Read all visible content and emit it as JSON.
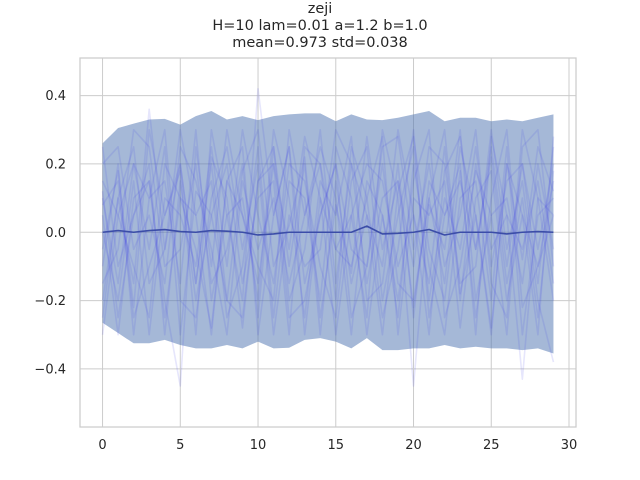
{
  "chart_data": {
    "type": "line",
    "title_lines": [
      "zeji",
      "H=10 lam=0.01 a=1.2 b=1.0",
      "mean=0.973 std=0.038"
    ],
    "xlabel": "",
    "ylabel": "",
    "xlim": [
      -1.45,
      30.45
    ],
    "ylim": [
      -0.57,
      0.51
    ],
    "xticks": [
      0,
      5,
      10,
      15,
      20,
      25,
      30
    ],
    "yticks": [
      -0.4,
      -0.2,
      0.0,
      0.2,
      0.4
    ],
    "xtick_labels": [
      "0",
      "5",
      "10",
      "15",
      "20",
      "25",
      "30"
    ],
    "ytick_labels": [
      "−0.4",
      "−0.2",
      "0.0",
      "0.2",
      "0.4"
    ],
    "grid": true,
    "colors": {
      "band": "#4c72b0",
      "mean": "#3b4da8",
      "trace": "#3a3ae6",
      "grid": "#cccccc",
      "spine": "#cccccc"
    },
    "x": [
      0,
      1,
      2,
      3,
      4,
      5,
      6,
      7,
      8,
      9,
      10,
      11,
      12,
      13,
      14,
      15,
      16,
      17,
      18,
      19,
      20,
      21,
      22,
      23,
      24,
      25,
      26,
      27,
      28,
      29
    ],
    "series": [
      {
        "role": "mean",
        "values": [
          0.0,
          0.005,
          0.0,
          0.005,
          0.008,
          0.002,
          0.0,
          0.005,
          0.003,
          0.0,
          -0.008,
          -0.005,
          0.0,
          0.0,
          0.0,
          0.0,
          0.0,
          0.018,
          -0.005,
          -0.003,
          0.0,
          0.008,
          -0.008,
          0.0,
          0.0,
          0.0,
          -0.005,
          0.0,
          0.002,
          0.0
        ]
      },
      {
        "role": "band_upper",
        "values": [
          0.26,
          0.305,
          0.318,
          0.33,
          0.332,
          0.315,
          0.34,
          0.355,
          0.33,
          0.34,
          0.328,
          0.34,
          0.345,
          0.348,
          0.348,
          0.325,
          0.345,
          0.33,
          0.328,
          0.335,
          0.345,
          0.355,
          0.325,
          0.335,
          0.335,
          0.325,
          0.33,
          0.325,
          0.335,
          0.345
        ]
      },
      {
        "role": "band_lower",
        "values": [
          -0.265,
          -0.295,
          -0.325,
          -0.325,
          -0.315,
          -0.33,
          -0.34,
          -0.34,
          -0.33,
          -0.34,
          -0.32,
          -0.34,
          -0.338,
          -0.315,
          -0.31,
          -0.32,
          -0.34,
          -0.31,
          -0.345,
          -0.345,
          -0.34,
          -0.34,
          -0.33,
          -0.34,
          -0.335,
          -0.34,
          -0.34,
          -0.345,
          -0.34,
          -0.355
        ]
      },
      {
        "role": "trace",
        "values": [
          0.1,
          -0.15,
          0.2,
          -0.05,
          0.25,
          -0.3,
          0.12,
          0.05,
          -0.2,
          0.18,
          0.3,
          -0.1,
          0.02,
          0.22,
          -0.25,
          0.08,
          -0.12,
          0.28,
          -0.05,
          0.15,
          -0.22,
          0.1,
          0.3,
          -0.18,
          0.05,
          -0.28,
          0.2,
          -0.08,
          0.25,
          0.12
        ]
      },
      {
        "role": "trace",
        "values": [
          -0.05,
          0.18,
          -0.22,
          0.3,
          0.05,
          0.2,
          -0.15,
          0.22,
          0.1,
          -0.28,
          0.15,
          0.25,
          -0.2,
          -0.05,
          0.3,
          -0.15,
          0.2,
          0.05,
          -0.3,
          0.12,
          0.28,
          -0.05,
          -0.2,
          0.18,
          -0.25,
          0.1,
          0.3,
          -0.22,
          -0.1,
          0.05
        ]
      },
      {
        "role": "trace",
        "values": [
          0.05,
          -0.3,
          0.1,
          0.15,
          -0.2,
          -0.45,
          0.25,
          -0.1,
          0.3,
          0.05,
          -0.15,
          0.2,
          -0.05,
          0.28,
          0.1,
          -0.3,
          0.05,
          0.2,
          0.15,
          -0.1,
          0.05,
          -0.3,
          0.18,
          0.28,
          -0.05,
          0.22,
          -0.15,
          0.1,
          -0.25,
          0.18
        ]
      },
      {
        "role": "trace",
        "values": [
          0.15,
          0.05,
          -0.1,
          -0.25,
          0.2,
          0.1,
          -0.05,
          -0.28,
          0.15,
          0.25,
          -0.3,
          0.05,
          0.25,
          -0.15,
          0.05,
          0.2,
          -0.25,
          -0.1,
          0.25,
          0.28,
          -0.05,
          0.2,
          -0.1,
          0.05,
          0.3,
          -0.15,
          -0.25,
          0.3,
          0.1,
          -0.2
        ]
      },
      {
        "role": "trace",
        "values": [
          -0.2,
          0.1,
          0.25,
          -0.15,
          -0.05,
          0.3,
          0.05,
          0.15,
          -0.25,
          -0.1,
          0.25,
          -0.25,
          0.15,
          0.1,
          -0.2,
          0.25,
          0.1,
          -0.3,
          0.05,
          -0.2,
          0.15,
          0.3,
          -0.25,
          -0.1,
          0.18,
          0.05,
          0.1,
          -0.15,
          0.2,
          -0.05
        ]
      },
      {
        "role": "trace",
        "values": [
          0.25,
          -0.1,
          0.05,
          0.2,
          -0.3,
          0.15,
          -0.2,
          0.05,
          0.2,
          -0.15,
          0.1,
          0.15,
          -0.3,
          0.25,
          0.2,
          -0.05,
          -0.1,
          0.1,
          0.28,
          -0.3,
          0.1,
          0.05,
          0.15,
          -0.28,
          0.1,
          0.18,
          -0.2,
          0.05,
          -0.3,
          0.28
        ]
      },
      {
        "role": "trace",
        "values": [
          -0.1,
          0.2,
          -0.3,
          0.1,
          0.15,
          -0.15,
          0.3,
          -0.2,
          0.05,
          0.1,
          -0.2,
          0.3,
          0.1,
          -0.25,
          0.15,
          0.05,
          0.28,
          -0.2,
          -0.15,
          0.2,
          -0.25,
          0.15,
          0.05,
          0.2,
          -0.3,
          0.28,
          0.05,
          -0.05,
          0.15,
          -0.15
        ]
      },
      {
        "role": "trace",
        "values": [
          0.0,
          -0.2,
          0.15,
          -0.3,
          0.1,
          0.05,
          -0.1,
          0.25,
          -0.1,
          0.3,
          0.05,
          -0.15,
          0.2,
          0.15,
          -0.1,
          -0.25,
          0.15,
          0.25,
          -0.2,
          0.05,
          0.25,
          -0.2,
          0.1,
          -0.05,
          0.25,
          -0.1,
          0.15,
          0.2,
          -0.15,
          0.25
        ]
      },
      {
        "role": "trace",
        "values": [
          0.2,
          0.25,
          -0.05,
          0.05,
          -0.15,
          0.25,
          0.15,
          -0.05,
          -0.3,
          0.15,
          -0.05,
          0.1,
          -0.15,
          0.05,
          0.25,
          0.1,
          -0.3,
          0.15,
          0.05,
          -0.25,
          0.2,
          -0.1,
          -0.3,
          0.1,
          0.15,
          -0.2,
          0.25,
          -0.3,
          0.05,
          0.1
        ]
      },
      {
        "role": "trace",
        "values": [
          -0.3,
          0.05,
          0.2,
          0.1,
          0.3,
          -0.2,
          -0.25,
          0.1,
          0.25,
          -0.05,
          0.2,
          -0.3,
          0.05,
          -0.1,
          -0.05,
          0.3,
          0.2,
          -0.15,
          0.1,
          0.15,
          -0.1,
          0.25,
          0.2,
          -0.15,
          -0.1,
          0.3,
          -0.05,
          0.15,
          -0.2,
          -0.38
        ]
      },
      {
        "role": "trace",
        "values": [
          0.08,
          0.15,
          -0.25,
          -0.1,
          0.05,
          0.18,
          -0.3,
          0.3,
          0.05,
          -0.2,
          0.42,
          0.05,
          0.25,
          -0.3,
          0.1,
          -0.05,
          0.05,
          -0.25,
          0.3,
          0.1,
          -0.45,
          0.08,
          -0.05,
          0.3,
          -0.2,
          0.05,
          -0.3,
          0.25,
          0.3,
          -0.1
        ]
      },
      {
        "role": "trace",
        "values": [
          -0.15,
          -0.05,
          0.3,
          0.25,
          -0.1,
          -0.05,
          0.2,
          -0.15,
          -0.05,
          0.2,
          -0.25,
          0.25,
          -0.1,
          0.2,
          -0.3,
          0.15,
          -0.15,
          0.05,
          -0.1,
          0.3,
          0.05,
          -0.15,
          0.25,
          -0.2,
          0.2,
          -0.05,
          0.05,
          -0.43,
          0.1,
          0.05
        ]
      },
      {
        "role": "trace",
        "values": [
          0.12,
          -0.25,
          0.05,
          0.15,
          -0.25,
          0.1,
          0.05,
          -0.3,
          0.15,
          0.05,
          -0.1,
          -0.2,
          0.3,
          0.05,
          0.2,
          -0.2,
          0.25,
          0.1,
          -0.25,
          -0.05,
          0.3,
          -0.25,
          0.05,
          0.15,
          -0.05,
          0.25,
          -0.1,
          0.2,
          -0.05,
          0.2
        ]
      },
      {
        "role": "trace",
        "values": [
          -0.25,
          0.1,
          -0.15,
          0.36,
          -0.05,
          0.2,
          -0.15,
          0.2,
          -0.2,
          -0.25,
          0.15,
          0.2,
          -0.25,
          -0.2,
          0.05,
          0.2,
          -0.05,
          -0.1,
          0.2,
          -0.15,
          -0.2,
          0.1,
          -0.15,
          0.25,
          0.05,
          -0.3,
          0.2,
          0.05,
          -0.1,
          0.15
        ]
      }
    ]
  }
}
